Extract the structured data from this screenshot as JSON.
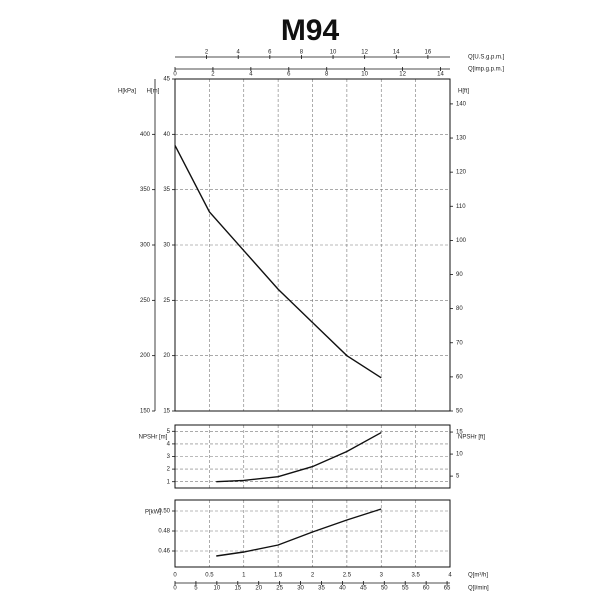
{
  "title": "M94",
  "chart_data": [
    {
      "type": "line",
      "x": [
        0,
        0.5,
        1,
        1.5,
        2,
        2.5,
        3
      ],
      "values": [
        39,
        33,
        29.5,
        26,
        23,
        20,
        18
      ],
      "color": "#111111",
      "xlim": [
        0,
        4
      ],
      "xticks": [
        0,
        0.5,
        1,
        1.5,
        2,
        2.5,
        3,
        3.5,
        4
      ],
      "ylabel": "H[m]",
      "ylim": [
        15,
        45
      ],
      "yticks": [
        15,
        20,
        25,
        30,
        35,
        40,
        45
      ],
      "y2label": "H[ft]",
      "y2lim": [
        50,
        147.3
      ],
      "y2ticks": [
        50,
        60,
        70,
        80,
        90,
        100,
        110,
        120,
        130,
        140
      ],
      "y3label": "H[kPa]",
      "y3lim": [
        150,
        450
      ],
      "y3ticks": [
        150,
        200,
        250,
        300,
        350,
        400
      ],
      "x_top": [
        {
          "label": "Q[U.S.g.p.m.]",
          "xlim": [
            0,
            17.4
          ],
          "xticks": [
            2,
            4,
            6,
            8,
            10,
            12,
            14,
            16
          ]
        },
        {
          "label": "Q[imp.g.p.m.]",
          "xlim": [
            0,
            14.5
          ],
          "xticks": [
            0,
            2,
            4,
            6,
            8,
            10,
            12,
            14
          ]
        }
      ],
      "grid": true
    },
    {
      "type": "line",
      "x": [
        0.6,
        1,
        1.5,
        2,
        2.5,
        3
      ],
      "values": [
        1.0,
        1.1,
        1.4,
        2.2,
        3.4,
        4.9
      ],
      "color": "#111111",
      "xlim": [
        0,
        4
      ],
      "xticks": [
        0,
        0.5,
        1,
        1.5,
        2,
        2.5,
        3,
        3.5,
        4
      ],
      "ylabel": "NPSHr [m]",
      "ylim": [
        0.5,
        5.5
      ],
      "yticks": [
        1,
        2,
        3,
        4,
        5
      ],
      "y2label": "NPSHr [ft]",
      "y2lim": [
        2.3,
        16.6
      ],
      "y2ticks": [
        5,
        10,
        15
      ],
      "grid": true
    },
    {
      "type": "line",
      "x": [
        0.6,
        1,
        1.5,
        2,
        2.5,
        3
      ],
      "values": [
        0.455,
        0.459,
        0.466,
        0.479,
        0.491,
        0.502
      ],
      "color": "#111111",
      "xlim": [
        0,
        4
      ],
      "xticks": [
        0,
        0.5,
        1,
        1.5,
        2,
        2.5,
        3,
        3.5,
        4
      ],
      "xlabel": "Q[m³/h]",
      "x2label": "Q[l/min]",
      "x2lim": [
        0,
        65.7
      ],
      "x2ticks": [
        0,
        5,
        10,
        15,
        20,
        25,
        30,
        35,
        40,
        45,
        50,
        55,
        60,
        65
      ],
      "ylabel": "P[kW]",
      "ylim": [
        0.444,
        0.511
      ],
      "yticks": [
        0.46,
        0.48,
        {
          "value": 0.5,
          "label": "0.50"
        }
      ],
      "grid": true
    }
  ]
}
